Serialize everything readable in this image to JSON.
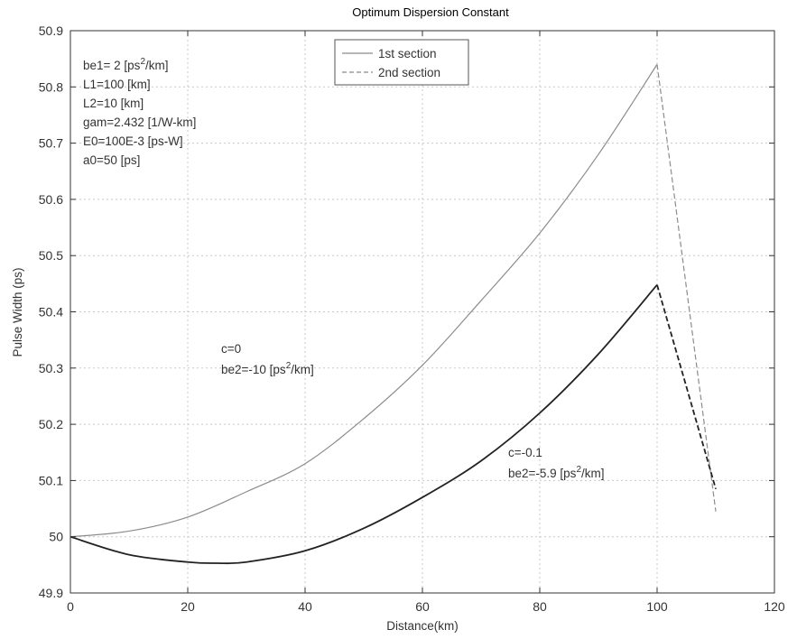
{
  "chart_data": {
    "type": "line",
    "title": "Optimum Dispersion Constant",
    "xlabel": "Distance(km)",
    "ylabel": "Pulse Width (ps)",
    "xlim": [
      0,
      120
    ],
    "ylim": [
      49.9,
      50.9
    ],
    "xticks": [
      0,
      20,
      40,
      60,
      80,
      100,
      120
    ],
    "yticks": [
      49.9,
      50,
      50.1,
      50.2,
      50.3,
      50.4,
      50.5,
      50.6,
      50.7,
      50.8,
      50.9
    ],
    "grid": true,
    "legend": {
      "placement": "top-center",
      "entries": [
        {
          "label": "1st section",
          "style": "solid"
        },
        {
          "label": "2nd section",
          "style": "dashed"
        }
      ]
    },
    "parameters": {
      "be1": "be1= 2 [ps",
      "be1_sup": "2",
      "be1_unit": "/km]",
      "L1": "L1=100 [km]",
      "L2": "L2=10 [km]",
      "gam": "gam=2.432 [1/W-km]",
      "E0": "E0=100E-3 [ps-W]",
      "a0": "a0=50 [ps]"
    },
    "annotations": [
      {
        "line1": "c=0",
        "line2_pre": "be2=-10 [ps",
        "line2_sup": "2",
        "line2_post": "/km]"
      },
      {
        "line1": "c=-0.1",
        "line2_pre": "be2=-5.9 [ps",
        "line2_sup": "2",
        "line2_post": "/km]"
      }
    ],
    "series": [
      {
        "section": "1st section",
        "case": "c=0",
        "style": "solid",
        "color": "#8c8c8c",
        "x": [
          0,
          10,
          20,
          30,
          40,
          50,
          60,
          70,
          80,
          90,
          100
        ],
        "y": [
          50.0,
          50.01,
          50.035,
          50.08,
          50.13,
          50.21,
          50.305,
          50.42,
          50.54,
          50.68,
          50.84
        ]
      },
      {
        "section": "2nd section",
        "case": "c=0",
        "style": "dashed",
        "color": "#8c8c8c",
        "x": [
          100,
          110
        ],
        "y": [
          50.84,
          50.045
        ]
      },
      {
        "section": "1st section",
        "case": "c=-0.1",
        "style": "solid",
        "color": "#222222",
        "x": [
          0,
          10,
          20,
          25,
          30,
          40,
          50,
          60,
          70,
          80,
          90,
          100
        ],
        "y": [
          50.0,
          49.968,
          49.955,
          49.953,
          49.955,
          49.975,
          50.015,
          50.07,
          50.135,
          50.22,
          50.325,
          50.448
        ]
      },
      {
        "section": "2nd section",
        "case": "c=-0.1",
        "style": "dashed",
        "color": "#222222",
        "x": [
          100,
          110
        ],
        "y": [
          50.448,
          50.085
        ]
      }
    ]
  }
}
